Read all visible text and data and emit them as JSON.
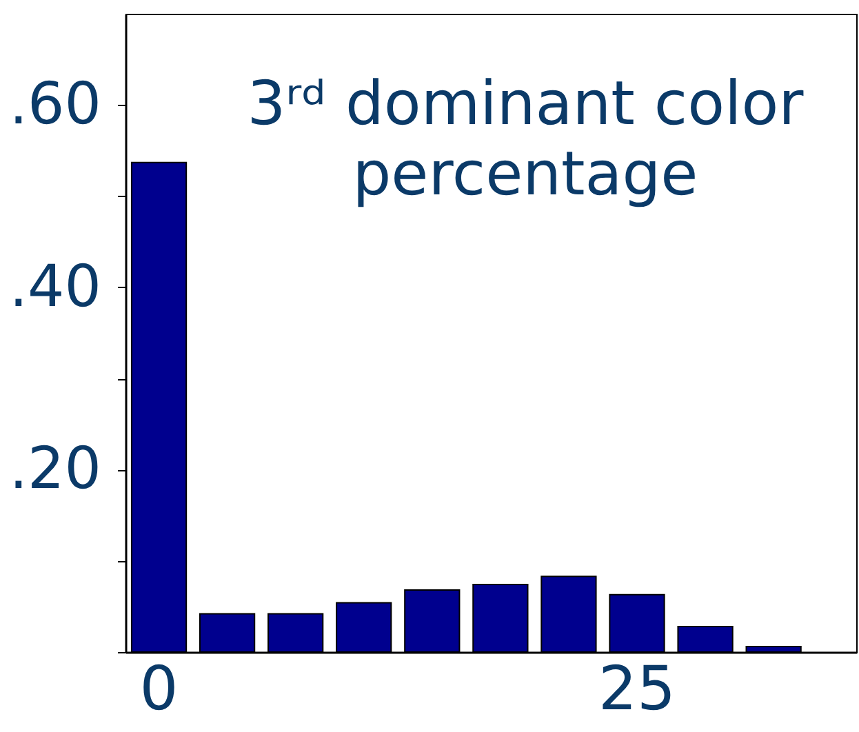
{
  "chart_data": {
    "type": "bar",
    "categories": [
      "0",
      null,
      null,
      null,
      null,
      null,
      null,
      "25",
      null,
      null
    ],
    "values": [
      0.537,
      0.042,
      0.042,
      0.054,
      0.068,
      0.074,
      0.083,
      0.063,
      0.028,
      0.006
    ],
    "color": "#00008e",
    "ylim": [
      0,
      0.7
    ],
    "yticks": [
      {
        "value": 0,
        "label": null
      },
      {
        "value": 0.1,
        "label": null
      },
      {
        "value": 0.2,
        "label": ".20"
      },
      {
        "value": 0.3,
        "label": null
      },
      {
        "value": 0.4,
        "label": ".40"
      },
      {
        "value": 0.5,
        "label": null
      },
      {
        "value": 0.6,
        "label": ".60"
      }
    ],
    "annotations": [
      "3ʳᵈ dominant color",
      "percentage"
    ],
    "grid": false
  }
}
